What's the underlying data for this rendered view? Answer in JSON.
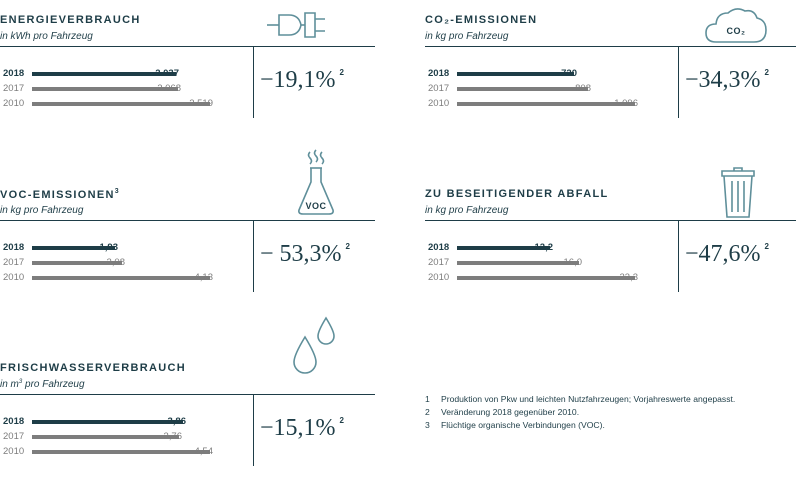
{
  "colors": {
    "current": "#1e3d47",
    "previous": "#7d7d7d",
    "icon": "#5f8f9a"
  },
  "sup_change": "2",
  "chart_data": [
    {
      "type": "bar",
      "title": "ENERGIEVERBRAUCH",
      "unit": "in kWh pro Fahrzeug",
      "icon": "plug-icon",
      "categories": [
        "2018",
        "2017",
        "2010"
      ],
      "values": [
        2037,
        2068,
        2519
      ],
      "labels": [
        "2.037",
        "2.068",
        "2.519"
      ],
      "change": "−19,1%"
    },
    {
      "type": "bar",
      "title": "CO₂-EMISSIONEN",
      "unit": "in kg pro Fahrzeug",
      "icon": "cloud-co2-icon",
      "icon_text": "CO₂",
      "categories": [
        "2018",
        "2017",
        "2010"
      ],
      "values": [
        720,
        808,
        1096
      ],
      "labels": [
        "720",
        "808",
        "1.096"
      ],
      "change": "−34,3%"
    },
    {
      "type": "bar",
      "title": "VOC-EMISSIONEN",
      "title_sup": "3",
      "unit": "in kg pro Fahrzeug",
      "icon": "flask-voc-icon",
      "icon_text": "VOC",
      "categories": [
        "2018",
        "2017",
        "2010"
      ],
      "values": [
        1.93,
        2.08,
        4.13
      ],
      "labels": [
        "1,93",
        "2,08",
        "4,13"
      ],
      "change": "− 53,3%"
    },
    {
      "type": "bar",
      "title": "ZU BESEITIGENDER ABFALL",
      "unit": "in kg pro Fahrzeug",
      "icon": "trash-bin-icon",
      "categories": [
        "2018",
        "2017",
        "2010"
      ],
      "values": [
        12.2,
        16.0,
        23.3
      ],
      "labels": [
        "12,2",
        "16,0",
        "23,3"
      ],
      "change": "−47,6%"
    },
    {
      "type": "bar",
      "title": "FRISCHWASSERVERBRAUCH",
      "unit": "in m",
      "unit_sup": "3",
      "unit_rest": " pro Fahrzeug",
      "icon": "water-drops-icon",
      "categories": [
        "2018",
        "2017",
        "2010"
      ],
      "values": [
        3.86,
        3.76,
        4.54
      ],
      "labels": [
        "3,86",
        "3,76",
        "4,54"
      ],
      "change": "−15,1%"
    }
  ],
  "footnotes": [
    {
      "num": "1",
      "text": "Produktion von Pkw und leichten Nutzfahrzeugen; Vorjahreswerte angepasst."
    },
    {
      "num": "2",
      "text": "Veränderung 2018 gegenüber 2010."
    },
    {
      "num": "3",
      "text": "Flüchtige organische Verbindungen (VOC)."
    }
  ]
}
